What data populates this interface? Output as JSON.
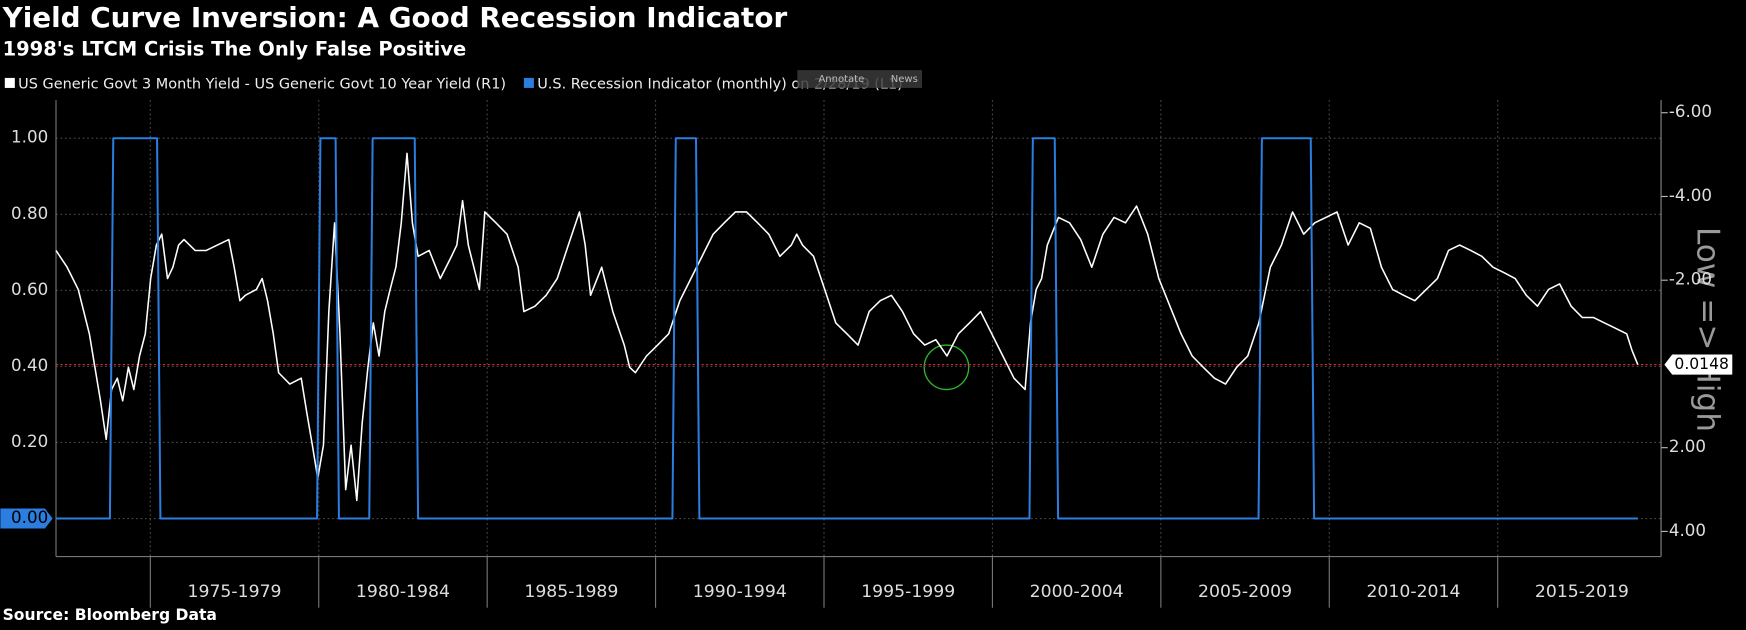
{
  "chart_data": {
    "type": "line",
    "title": "Yield Curve Inversion: A Good Recession Indicator",
    "subtitle": "1998's LTCM Crisis The Only False Positive",
    "source": "Source: Bloomberg Data",
    "y2label": "Low => High",
    "toolbar": [
      "Annotate",
      "News"
    ],
    "xlim": [
      1972.2,
      2019.85
    ],
    "xticks": [
      {
        "value": 1975,
        "label": "1975-1979"
      },
      {
        "value": 1980,
        "label": "1980-1984"
      },
      {
        "value": 1985,
        "label": "1985-1989"
      },
      {
        "value": 1990,
        "label": "1990-1994"
      },
      {
        "value": 1995,
        "label": "1995-1999"
      },
      {
        "value": 2000,
        "label": "2000-2004"
      },
      {
        "value": 2005,
        "label": "2005-2009"
      },
      {
        "value": 2010,
        "label": "2010-2014"
      },
      {
        "value": 2015,
        "label": "2015-2019"
      }
    ],
    "ylim": [
      -0.1,
      1.1
    ],
    "yticks": [
      {
        "value": 0,
        "label": "0.00"
      },
      {
        "value": 0.2,
        "label": "0.20"
      },
      {
        "value": 0.4,
        "label": "0.40"
      },
      {
        "value": 0.6,
        "label": "0.60"
      },
      {
        "value": 0.8,
        "label": "0.80"
      },
      {
        "value": 1,
        "label": "1.00"
      }
    ],
    "y2lim": [
      4.6,
      -6.3
    ],
    "y2ticks": [
      {
        "value": -6,
        "label": "-6.00"
      },
      {
        "value": -4,
        "label": "-4.00"
      },
      {
        "value": -2,
        "label": "-2.00"
      },
      {
        "value": 2,
        "label": "2.00"
      },
      {
        "value": 4,
        "label": "4.00"
      }
    ],
    "grid": true,
    "series": [
      {
        "name": "US Generic Govt 3 Month Yield - US Generic Govt 10 Year Yield (R1)",
        "color": "#ffffff",
        "axis": "y2",
        "x": [
          1972.2,
          1972.53,
          1972.86,
          1973.19,
          1973.52,
          1973.69,
          1973.85,
          1974.02,
          1974.18,
          1974.35,
          1974.51,
          1974.68,
          1974.85,
          1975.01,
          1975.18,
          1975.34,
          1975.51,
          1975.67,
          1975.84,
          1976.0,
          1976.33,
          1976.66,
          1976.99,
          1977.33,
          1977.49,
          1977.66,
          1977.82,
          1978.15,
          1978.32,
          1978.48,
          1978.65,
          1978.81,
          1979.14,
          1979.48,
          1979.64,
          1979.81,
          1979.97,
          1980.14,
          1980.3,
          1980.47,
          1980.63,
          1980.8,
          1980.96,
          1981.13,
          1981.29,
          1981.46,
          1981.62,
          1981.79,
          1981.96,
          1982.12,
          1982.29,
          1982.45,
          1982.62,
          1982.78,
          1982.95,
          1983.28,
          1983.61,
          1983.94,
          1984.1,
          1984.27,
          1984.44,
          1984.77,
          1984.93,
          1985.26,
          1985.59,
          1985.92,
          1986.09,
          1986.42,
          1986.75,
          1987.08,
          1987.41,
          1987.74,
          1987.91,
          1988.07,
          1988.4,
          1988.73,
          1989.07,
          1989.23,
          1989.4,
          1989.73,
          1990.06,
          1990.39,
          1990.72,
          1991.05,
          1991.38,
          1991.71,
          1992.04,
          1992.37,
          1992.7,
          1993.03,
          1993.36,
          1993.69,
          1994.03,
          1994.19,
          1994.36,
          1994.69,
          1995.02,
          1995.35,
          1995.68,
          1996.01,
          1996.34,
          1996.67,
          1997.0,
          1997.33,
          1997.66,
          1997.99,
          1998.32,
          1998.65,
          1998.99,
          1999.32,
          1999.65,
          1999.98,
          2000.31,
          2000.64,
          2000.97,
          2001.13,
          2001.3,
          2001.46,
          2001.63,
          2001.96,
          2002.29,
          2002.62,
          2002.95,
          2003.28,
          2003.61,
          2003.95,
          2004.28,
          2004.61,
          2004.94,
          2005.27,
          2005.6,
          2005.93,
          2006.26,
          2006.59,
          2006.92,
          2007.25,
          2007.58,
          2007.91,
          2008.25,
          2008.58,
          2008.91,
          2009.24,
          2009.57,
          2009.9,
          2010.23,
          2010.56,
          2010.89,
          2011.22,
          2011.55,
          2011.88,
          2012.21,
          2012.54,
          2012.88,
          2013.21,
          2013.54,
          2013.87,
          2014.2,
          2014.53,
          2014.86,
          2015.19,
          2015.52,
          2015.85,
          2016.18,
          2016.51,
          2016.84,
          2017.18,
          2017.51,
          2017.84,
          2018.17,
          2018.5,
          2018.83,
          2018.99,
          2019.16
        ],
        "values": [
          -2.71,
          -2.31,
          -1.78,
          -0.72,
          0.88,
          1.8,
          0.61,
          0.34,
          0.88,
          0.08,
          0.61,
          -0.19,
          -0.72,
          -2.04,
          -2.84,
          -3.1,
          -2.04,
          -2.31,
          -2.84,
          -2.97,
          -2.71,
          -2.71,
          -2.84,
          -2.97,
          -2.31,
          -1.51,
          -1.64,
          -1.78,
          -2.04,
          -1.51,
          -0.72,
          0.21,
          0.48,
          0.34,
          1.14,
          1.94,
          2.73,
          1.94,
          -1.25,
          -3.37,
          -0.72,
          3.0,
          1.94,
          3.26,
          1.41,
          0.08,
          -0.98,
          -0.19,
          -1.25,
          -1.78,
          -2.31,
          -3.37,
          -5.03,
          -3.37,
          -2.57,
          -2.71,
          -2.04,
          -2.57,
          -2.84,
          -3.9,
          -2.84,
          -1.78,
          -3.63,
          -3.37,
          -3.1,
          -2.31,
          -1.25,
          -1.38,
          -1.64,
          -2.04,
          -2.84,
          -3.63,
          -2.84,
          -1.64,
          -2.31,
          -1.25,
          -0.45,
          0.08,
          0.21,
          -0.19,
          -0.45,
          -0.72,
          -1.51,
          -2.04,
          -2.57,
          -3.1,
          -3.37,
          -3.63,
          -3.63,
          -3.37,
          -3.1,
          -2.57,
          -2.84,
          -3.1,
          -2.84,
          -2.57,
          -1.78,
          -0.98,
          -0.72,
          -0.45,
          -1.25,
          -1.51,
          -1.64,
          -1.25,
          -0.72,
          -0.45,
          -0.58,
          -0.19,
          -0.72,
          -0.98,
          -1.25,
          -0.72,
          -0.19,
          0.34,
          0.61,
          -0.98,
          -1.78,
          -2.04,
          -2.84,
          -3.5,
          -3.37,
          -2.97,
          -2.31,
          -3.1,
          -3.5,
          -3.37,
          -3.77,
          -3.1,
          -2.04,
          -1.38,
          -0.72,
          -0.19,
          0.08,
          0.34,
          0.48,
          0.08,
          -0.19,
          -0.98,
          -2.31,
          -2.84,
          -3.63,
          -3.1,
          -3.37,
          -3.5,
          -3.63,
          -2.84,
          -3.37,
          -3.24,
          -2.31,
          -1.78,
          -1.64,
          -1.51,
          -1.78,
          -2.04,
          -2.71,
          -2.84,
          -2.71,
          -2.57,
          -2.31,
          -2.18,
          -2.04,
          -1.64,
          -1.38,
          -1.78,
          -1.91,
          -1.38,
          -1.11,
          -1.11,
          -0.98,
          -0.85,
          -0.72,
          -0.32,
          0.0148
        ]
      },
      {
        "name": "U.S. Recession Indicator (monthly)  on 2/28/19 (L1)",
        "color": "#2b7de0",
        "axis": "y",
        "x": [
          1972.2,
          1973.8,
          1973.9,
          1975.2,
          1975.3,
          1979.95,
          1980.05,
          1980.5,
          1980.6,
          1981.5,
          1981.6,
          1982.85,
          1982.95,
          1990.5,
          1990.6,
          1991.2,
          1991.3,
          2001.1,
          2001.2,
          2001.85,
          2001.95,
          2007.9,
          2008.0,
          2009.45,
          2009.55,
          2019.16
        ],
        "values": [
          0,
          0,
          1,
          1,
          0,
          0,
          1,
          1,
          0,
          0,
          1,
          1,
          0,
          0,
          1,
          1,
          0,
          0,
          1,
          1,
          0,
          0,
          1,
          1,
          0,
          0
        ]
      }
    ]
  }
}
